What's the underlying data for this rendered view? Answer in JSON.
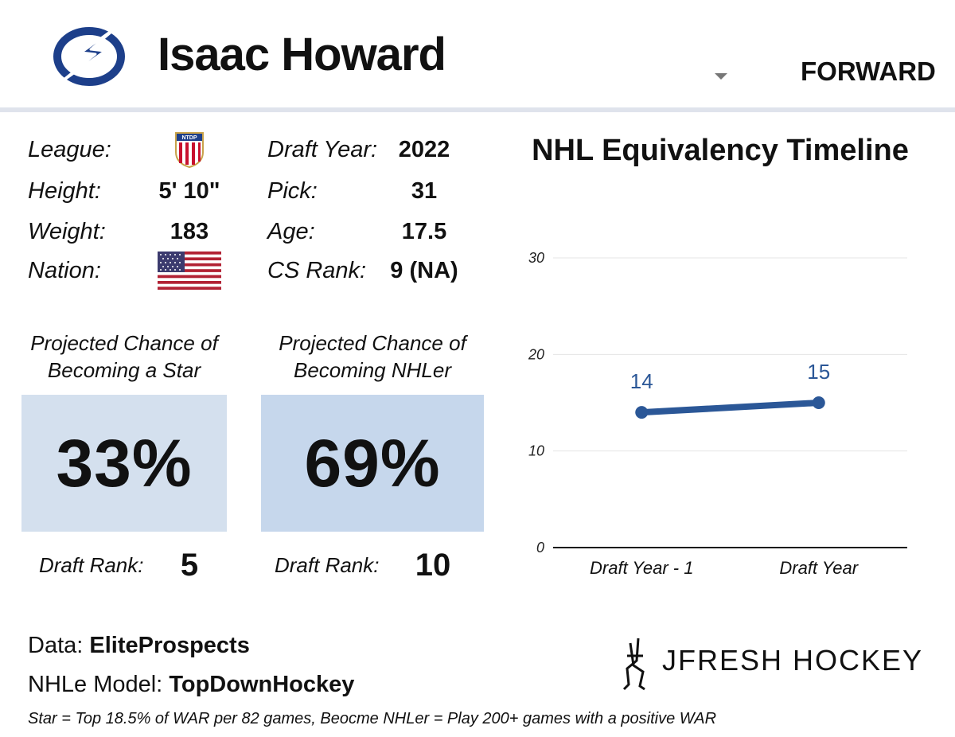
{
  "header": {
    "player_name": "Isaac Howard",
    "position": "FORWARD",
    "team_logo_icon": "lightning-bolt-logo"
  },
  "info": {
    "league_label": "League:",
    "league_icon": "ntdp-crest-icon",
    "height_label": "Height:",
    "height_value": "5' 10\"",
    "weight_label": "Weight:",
    "weight_value": "183",
    "nation_label": "Nation:",
    "nation_icon": "usa-flag-icon",
    "draft_year_label": "Draft Year:",
    "draft_year_value": "2022",
    "pick_label": "Pick:",
    "pick_value": "31",
    "age_label": "Age:",
    "age_value": "17.5",
    "cs_rank_label": "CS Rank:",
    "cs_rank_value": "9 (NA)"
  },
  "projections": [
    {
      "caption_line1": "Projected Chance of",
      "caption_line2": "Becoming a Star",
      "value": "33%",
      "rank_label": "Draft Rank:",
      "rank_value": "5",
      "box_color": "#d4e0ee"
    },
    {
      "caption_line1": "Projected Chance of",
      "caption_line2": "Becoming NHLer",
      "value": "69%",
      "rank_label": "Draft Rank:",
      "rank_value": "10",
      "box_color": "#c6d7ec"
    }
  ],
  "chart_data": {
    "type": "line",
    "title": "NHL Equivalency Timeline",
    "categories": [
      "Draft Year - 1",
      "Draft Year"
    ],
    "series": [
      {
        "values": [
          14,
          15
        ],
        "data_labels": [
          "14",
          "15"
        ],
        "color": "#2b5797"
      }
    ],
    "ylim": [
      0,
      30
    ],
    "yticks": [
      "0",
      "10",
      "20",
      "30"
    ],
    "grid": true
  },
  "footer": {
    "data_prefix": "Data: ",
    "data_source": "EliteProspects",
    "model_prefix": "NHLe Model: ",
    "model_source": "TopDownHockey",
    "footnote": "Star = Top 18.5% of WAR per 82 games, Beocme NHLer = Play 200+ games with a positive WAR",
    "brand": "JFRESH HOCKEY"
  }
}
